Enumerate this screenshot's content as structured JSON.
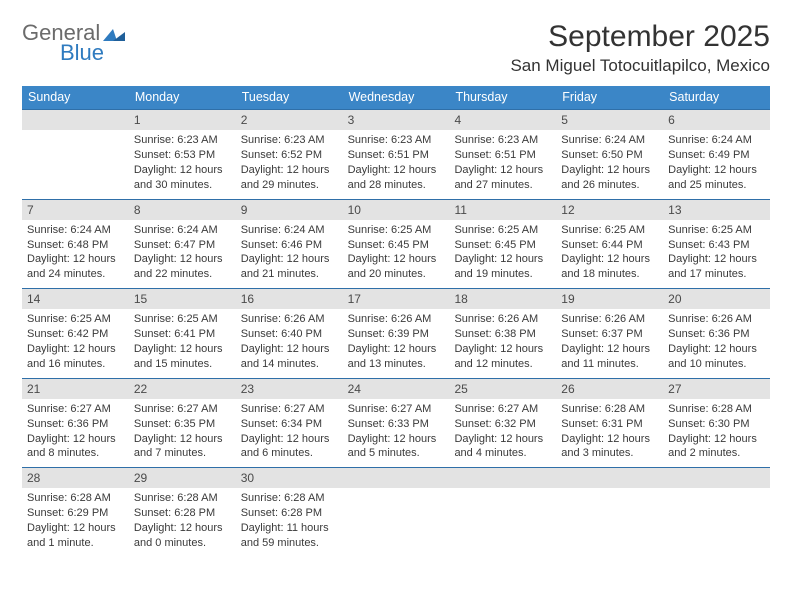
{
  "brand": {
    "general": "General",
    "blue": "Blue"
  },
  "title": "September 2025",
  "location": "San Miguel Totocuitlapilco, Mexico",
  "colors": {
    "header_blue": "#3b86c7",
    "datebar_bg": "#e3e3e3",
    "datebar_border": "#2f6fa8",
    "text": "#333333",
    "logo_gray": "#6b6b6b",
    "logo_blue": "#2f7bbf",
    "background": "#ffffff"
  },
  "daynames": [
    "Sunday",
    "Monday",
    "Tuesday",
    "Wednesday",
    "Thursday",
    "Friday",
    "Saturday"
  ],
  "weeks": [
    [
      {
        "date": "",
        "sunrise": "",
        "sunset": "",
        "daylight": ""
      },
      {
        "date": "1",
        "sunrise": "Sunrise: 6:23 AM",
        "sunset": "Sunset: 6:53 PM",
        "daylight": "Daylight: 12 hours and 30 minutes."
      },
      {
        "date": "2",
        "sunrise": "Sunrise: 6:23 AM",
        "sunset": "Sunset: 6:52 PM",
        "daylight": "Daylight: 12 hours and 29 minutes."
      },
      {
        "date": "3",
        "sunrise": "Sunrise: 6:23 AM",
        "sunset": "Sunset: 6:51 PM",
        "daylight": "Daylight: 12 hours and 28 minutes."
      },
      {
        "date": "4",
        "sunrise": "Sunrise: 6:23 AM",
        "sunset": "Sunset: 6:51 PM",
        "daylight": "Daylight: 12 hours and 27 minutes."
      },
      {
        "date": "5",
        "sunrise": "Sunrise: 6:24 AM",
        "sunset": "Sunset: 6:50 PM",
        "daylight": "Daylight: 12 hours and 26 minutes."
      },
      {
        "date": "6",
        "sunrise": "Sunrise: 6:24 AM",
        "sunset": "Sunset: 6:49 PM",
        "daylight": "Daylight: 12 hours and 25 minutes."
      }
    ],
    [
      {
        "date": "7",
        "sunrise": "Sunrise: 6:24 AM",
        "sunset": "Sunset: 6:48 PM",
        "daylight": "Daylight: 12 hours and 24 minutes."
      },
      {
        "date": "8",
        "sunrise": "Sunrise: 6:24 AM",
        "sunset": "Sunset: 6:47 PM",
        "daylight": "Daylight: 12 hours and 22 minutes."
      },
      {
        "date": "9",
        "sunrise": "Sunrise: 6:24 AM",
        "sunset": "Sunset: 6:46 PM",
        "daylight": "Daylight: 12 hours and 21 minutes."
      },
      {
        "date": "10",
        "sunrise": "Sunrise: 6:25 AM",
        "sunset": "Sunset: 6:45 PM",
        "daylight": "Daylight: 12 hours and 20 minutes."
      },
      {
        "date": "11",
        "sunrise": "Sunrise: 6:25 AM",
        "sunset": "Sunset: 6:45 PM",
        "daylight": "Daylight: 12 hours and 19 minutes."
      },
      {
        "date": "12",
        "sunrise": "Sunrise: 6:25 AM",
        "sunset": "Sunset: 6:44 PM",
        "daylight": "Daylight: 12 hours and 18 minutes."
      },
      {
        "date": "13",
        "sunrise": "Sunrise: 6:25 AM",
        "sunset": "Sunset: 6:43 PM",
        "daylight": "Daylight: 12 hours and 17 minutes."
      }
    ],
    [
      {
        "date": "14",
        "sunrise": "Sunrise: 6:25 AM",
        "sunset": "Sunset: 6:42 PM",
        "daylight": "Daylight: 12 hours and 16 minutes."
      },
      {
        "date": "15",
        "sunrise": "Sunrise: 6:25 AM",
        "sunset": "Sunset: 6:41 PM",
        "daylight": "Daylight: 12 hours and 15 minutes."
      },
      {
        "date": "16",
        "sunrise": "Sunrise: 6:26 AM",
        "sunset": "Sunset: 6:40 PM",
        "daylight": "Daylight: 12 hours and 14 minutes."
      },
      {
        "date": "17",
        "sunrise": "Sunrise: 6:26 AM",
        "sunset": "Sunset: 6:39 PM",
        "daylight": "Daylight: 12 hours and 13 minutes."
      },
      {
        "date": "18",
        "sunrise": "Sunrise: 6:26 AM",
        "sunset": "Sunset: 6:38 PM",
        "daylight": "Daylight: 12 hours and 12 minutes."
      },
      {
        "date": "19",
        "sunrise": "Sunrise: 6:26 AM",
        "sunset": "Sunset: 6:37 PM",
        "daylight": "Daylight: 12 hours and 11 minutes."
      },
      {
        "date": "20",
        "sunrise": "Sunrise: 6:26 AM",
        "sunset": "Sunset: 6:36 PM",
        "daylight": "Daylight: 12 hours and 10 minutes."
      }
    ],
    [
      {
        "date": "21",
        "sunrise": "Sunrise: 6:27 AM",
        "sunset": "Sunset: 6:36 PM",
        "daylight": "Daylight: 12 hours and 8 minutes."
      },
      {
        "date": "22",
        "sunrise": "Sunrise: 6:27 AM",
        "sunset": "Sunset: 6:35 PM",
        "daylight": "Daylight: 12 hours and 7 minutes."
      },
      {
        "date": "23",
        "sunrise": "Sunrise: 6:27 AM",
        "sunset": "Sunset: 6:34 PM",
        "daylight": "Daylight: 12 hours and 6 minutes."
      },
      {
        "date": "24",
        "sunrise": "Sunrise: 6:27 AM",
        "sunset": "Sunset: 6:33 PM",
        "daylight": "Daylight: 12 hours and 5 minutes."
      },
      {
        "date": "25",
        "sunrise": "Sunrise: 6:27 AM",
        "sunset": "Sunset: 6:32 PM",
        "daylight": "Daylight: 12 hours and 4 minutes."
      },
      {
        "date": "26",
        "sunrise": "Sunrise: 6:28 AM",
        "sunset": "Sunset: 6:31 PM",
        "daylight": "Daylight: 12 hours and 3 minutes."
      },
      {
        "date": "27",
        "sunrise": "Sunrise: 6:28 AM",
        "sunset": "Sunset: 6:30 PM",
        "daylight": "Daylight: 12 hours and 2 minutes."
      }
    ],
    [
      {
        "date": "28",
        "sunrise": "Sunrise: 6:28 AM",
        "sunset": "Sunset: 6:29 PM",
        "daylight": "Daylight: 12 hours and 1 minute."
      },
      {
        "date": "29",
        "sunrise": "Sunrise: 6:28 AM",
        "sunset": "Sunset: 6:28 PM",
        "daylight": "Daylight: 12 hours and 0 minutes."
      },
      {
        "date": "30",
        "sunrise": "Sunrise: 6:28 AM",
        "sunset": "Sunset: 6:28 PM",
        "daylight": "Daylight: 11 hours and 59 minutes."
      },
      {
        "date": "",
        "sunrise": "",
        "sunset": "",
        "daylight": ""
      },
      {
        "date": "",
        "sunrise": "",
        "sunset": "",
        "daylight": ""
      },
      {
        "date": "",
        "sunrise": "",
        "sunset": "",
        "daylight": ""
      },
      {
        "date": "",
        "sunrise": "",
        "sunset": "",
        "daylight": ""
      }
    ]
  ]
}
